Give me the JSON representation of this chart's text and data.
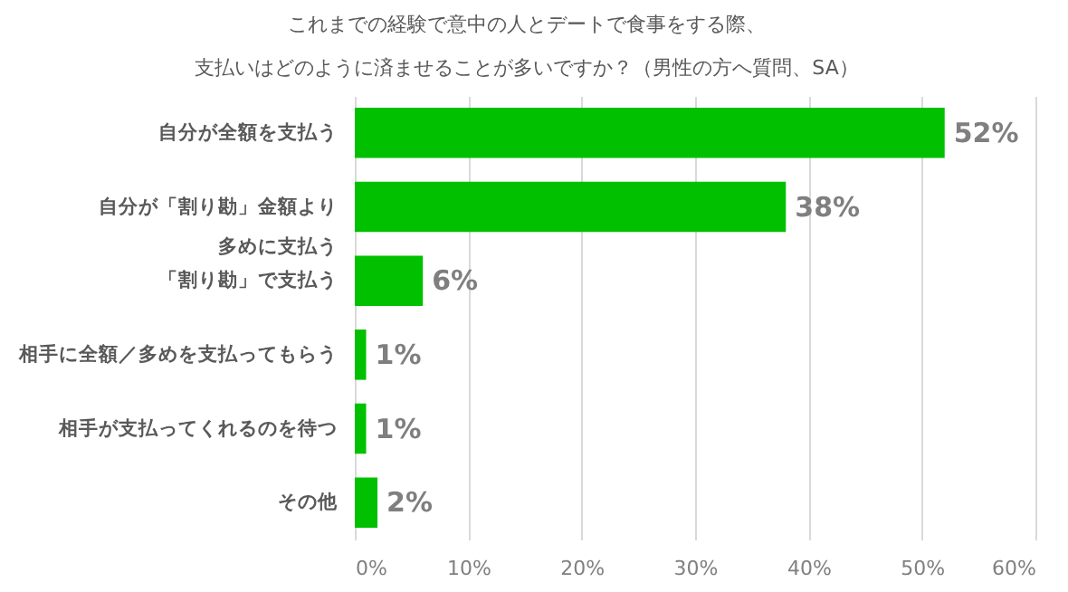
{
  "chart_data": {
    "type": "bar",
    "orientation": "horizontal",
    "title": "これまでの経験で意中の人とデートで食事をする際、支払いはどのように済ませることが多いですか？（男性の方へ質問、SA）",
    "categories": [
      "自分が全額を支払う",
      "自分が「割り勘」金額より多めに支払う",
      "「割り勘」で支払う",
      "相手に全額／多めを支払ってもらう",
      "相手が支払ってくれるのを待つ",
      "その他"
    ],
    "values": [
      52,
      38,
      6,
      1,
      1,
      2
    ],
    "value_labels": [
      "52%",
      "38%",
      "6%",
      "1%",
      "1%",
      "2%"
    ],
    "color": "#00c000",
    "xlim": [
      0,
      60
    ],
    "xticks": [
      {
        "value": 0,
        "label": "0%"
      },
      {
        "value": 10,
        "label": "10%"
      },
      {
        "value": 20,
        "label": "20%"
      },
      {
        "value": 30,
        "label": "30%"
      },
      {
        "value": 40,
        "label": "40%"
      },
      {
        "value": 50,
        "label": "50%"
      },
      {
        "value": 60,
        "label": "60%"
      }
    ],
    "grid": "x"
  }
}
